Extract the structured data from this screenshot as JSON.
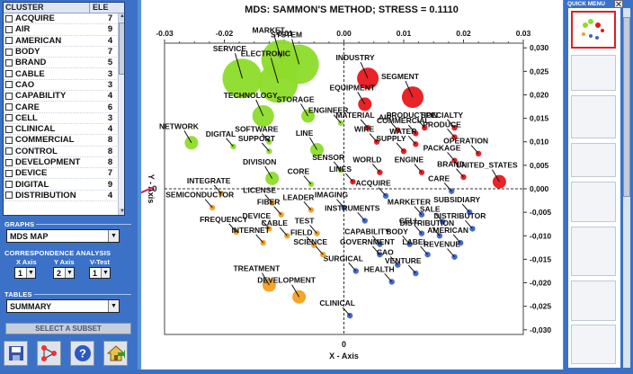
{
  "cluster_table": {
    "col_cluster": "CLUSTER",
    "col_ele": "ELE",
    "rows": [
      {
        "name": "ACQUIRE",
        "count": "7"
      },
      {
        "name": "AIR",
        "count": "9"
      },
      {
        "name": "AMERICAN",
        "count": "4"
      },
      {
        "name": "BODY",
        "count": "7"
      },
      {
        "name": "BRAND",
        "count": "5"
      },
      {
        "name": "CABLE",
        "count": "3"
      },
      {
        "name": "CAO",
        "count": "3"
      },
      {
        "name": "CAPABILITY",
        "count": "4"
      },
      {
        "name": "CARE",
        "count": "6"
      },
      {
        "name": "CELL",
        "count": "3"
      },
      {
        "name": "CLINICAL",
        "count": "4"
      },
      {
        "name": "COMMERCIAL",
        "count": "8"
      },
      {
        "name": "CONTROL",
        "count": "8"
      },
      {
        "name": "DEVELOPMENT",
        "count": "8"
      },
      {
        "name": "DEVICE",
        "count": "7"
      },
      {
        "name": "DIGITAL",
        "count": "9"
      },
      {
        "name": "DISTRIBUTION",
        "count": "4"
      }
    ]
  },
  "graphs": {
    "title": "GRAPHS",
    "selected": "MDS MAP"
  },
  "correspondence": {
    "title": "CORRESPONDENCE ANALYSIS",
    "x_label": "X Axis",
    "y_label": "Y Axis",
    "v_label": "V-Test",
    "x_value": "1",
    "y_value": "2",
    "v_value": "1"
  },
  "tables": {
    "title": "TABLES",
    "selected": "SUMMARY"
  },
  "subset_button": "SELECT A SUBSET",
  "quick_menu": {
    "title": "QUICK MENU"
  },
  "chart_data": {
    "type": "scatter",
    "title": "MDS: SAMMON'S METHOD; STRESS = 0.1110",
    "xlabel": "X - Axis",
    "ylabel": "Y - Axis",
    "xlim": [
      -0.03,
      0.03
    ],
    "ylim": [
      -0.031,
      0.031
    ],
    "xticks": [
      "-0.03",
      "-0.02",
      "-0.01",
      "0.00",
      "0.01",
      "0.02",
      "0.03"
    ],
    "yticks": [
      "0,030",
      "0,025",
      "0,020",
      "0,015",
      "0,010",
      "0,005",
      "0,000",
      "-0,005",
      "-0,010",
      "-0,015",
      "-0,020",
      "-0,025",
      "-0,030"
    ],
    "colors": {
      "green": "#8ddc2a",
      "red": "#e8171b",
      "orange": "#f3a020",
      "blue": "#3d63cf"
    },
    "points": [
      {
        "label": "MARKET",
        "x": -0.0105,
        "y": 0.0275,
        "size": 4,
        "color": "green"
      },
      {
        "label": "SYSTEM",
        "x": -0.0075,
        "y": 0.0265,
        "size": 4,
        "color": "green"
      },
      {
        "label": "SERVICE",
        "x": -0.017,
        "y": 0.0235,
        "size": 4,
        "color": "green"
      },
      {
        "label": "ELECTRONIC",
        "x": -0.011,
        "y": 0.0225,
        "size": 4,
        "color": "green"
      },
      {
        "label": "TECHNOLOGY",
        "x": -0.0135,
        "y": 0.0155,
        "size": 3,
        "color": "green"
      },
      {
        "label": "STORAGE",
        "x": -0.006,
        "y": 0.0155,
        "size": 2,
        "color": "green"
      },
      {
        "label": "ENGINEER",
        "x": -0.0005,
        "y": 0.014,
        "size": 1,
        "color": "green"
      },
      {
        "label": "NETWORK",
        "x": -0.0255,
        "y": 0.0098,
        "size": 2,
        "color": "green"
      },
      {
        "label": "SOFTWARE",
        "x": -0.0125,
        "y": 0.01,
        "size": 1,
        "color": "green"
      },
      {
        "label": "DIGITAL",
        "x": -0.0185,
        "y": 0.009,
        "size": 1,
        "color": "green"
      },
      {
        "label": "SUPPORT",
        "x": -0.0125,
        "y": 0.008,
        "size": 1,
        "color": "green"
      },
      {
        "label": "LINE",
        "x": -0.0045,
        "y": 0.0083,
        "size": 2,
        "color": "green"
      },
      {
        "label": "SENSOR",
        "x": -0.0005,
        "y": 0.004,
        "size": 1,
        "color": "green"
      },
      {
        "label": "DIVISION",
        "x": -0.012,
        "y": 0.0022,
        "size": 2,
        "color": "green"
      },
      {
        "label": "CORE",
        "x": -0.0055,
        "y": 0.001,
        "size": 1,
        "color": "green"
      },
      {
        "label": "INDUSTRY",
        "x": 0.004,
        "y": 0.0235,
        "size": 3,
        "color": "red"
      },
      {
        "label": "SEGMENT",
        "x": 0.0115,
        "y": 0.0195,
        "size": 3,
        "color": "red"
      },
      {
        "label": "EQUIPMENT",
        "x": 0.0035,
        "y": 0.018,
        "size": 2,
        "color": "red"
      },
      {
        "label": "MATERIAL",
        "x": 0.004,
        "y": 0.013,
        "size": 1,
        "color": "red"
      },
      {
        "label": "AIR",
        "x": 0.009,
        "y": 0.0125,
        "size": 1,
        "color": "red"
      },
      {
        "label": "COMMERCIAL",
        "x": 0.012,
        "y": 0.0118,
        "size": 1,
        "color": "red"
      },
      {
        "label": "PRODUCTION",
        "x": 0.0135,
        "y": 0.013,
        "size": 1,
        "color": "red"
      },
      {
        "label": "SPECIALTY",
        "x": 0.0185,
        "y": 0.013,
        "size": 1,
        "color": "red"
      },
      {
        "label": "WIRE",
        "x": 0.0055,
        "y": 0.01,
        "size": 1,
        "color": "red"
      },
      {
        "label": "WATER",
        "x": 0.012,
        "y": 0.0095,
        "size": 1,
        "color": "red"
      },
      {
        "label": "PRODUCE",
        "x": 0.0185,
        "y": 0.011,
        "size": 1,
        "color": "red"
      },
      {
        "label": "SUPPLY",
        "x": 0.01,
        "y": 0.008,
        "size": 1,
        "color": "red"
      },
      {
        "label": "OPERATION",
        "x": 0.0225,
        "y": 0.0075,
        "size": 1,
        "color": "red"
      },
      {
        "label": "PACKAGE",
        "x": 0.0185,
        "y": 0.006,
        "size": 1,
        "color": "red"
      },
      {
        "label": "WORLD",
        "x": 0.006,
        "y": 0.0035,
        "size": 1,
        "color": "red"
      },
      {
        "label": "ENGINE",
        "x": 0.013,
        "y": 0.0035,
        "size": 1,
        "color": "red"
      },
      {
        "label": "BRAND",
        "x": 0.02,
        "y": 0.0025,
        "size": 1,
        "color": "red"
      },
      {
        "label": "UNITED_STATES",
        "x": 0.026,
        "y": 0.0015,
        "size": 2,
        "color": "red"
      },
      {
        "label": "LINES",
        "x": 0.0015,
        "y": 0.0015,
        "size": 1,
        "color": "red"
      },
      {
        "label": "ACQUIRE",
        "x": 0.007,
        "y": -0.0015,
        "size": 1,
        "color": "blue"
      },
      {
        "label": "CARE",
        "x": 0.018,
        "y": -0.0005,
        "size": 1,
        "color": "blue"
      },
      {
        "label": "IMAGING",
        "x": 0.0,
        "y": -0.004,
        "size": 1,
        "color": "blue"
      },
      {
        "label": "MARKETER",
        "x": 0.013,
        "y": -0.0055,
        "size": 1,
        "color": "blue"
      },
      {
        "label": "SUBSIDIARY",
        "x": 0.021,
        "y": -0.005,
        "size": 1,
        "color": "blue"
      },
      {
        "label": "SALE",
        "x": 0.0165,
        "y": -0.007,
        "size": 1,
        "color": "blue"
      },
      {
        "label": "INSTRUMENTS",
        "x": 0.0035,
        "y": -0.0068,
        "size": 1,
        "color": "blue"
      },
      {
        "label": "CELL",
        "x": 0.013,
        "y": -0.0095,
        "size": 1,
        "color": "blue"
      },
      {
        "label": "DISTRIBUTOR",
        "x": 0.0215,
        "y": -0.0085,
        "size": 1,
        "color": "blue"
      },
      {
        "label": "DISTRIBUTION",
        "x": 0.016,
        "y": -0.01,
        "size": 1,
        "color": "blue"
      },
      {
        "label": "CAPABILITY",
        "x": 0.006,
        "y": -0.0118,
        "size": 1,
        "color": "blue"
      },
      {
        "label": "BODY",
        "x": 0.011,
        "y": -0.0118,
        "size": 1,
        "color": "blue"
      },
      {
        "label": "AMERICAN",
        "x": 0.0195,
        "y": -0.0115,
        "size": 1,
        "color": "blue"
      },
      {
        "label": "GOVERNMENT",
        "x": 0.006,
        "y": -0.014,
        "size": 1,
        "color": "blue"
      },
      {
        "label": "LABEL",
        "x": 0.014,
        "y": -0.014,
        "size": 1,
        "color": "blue"
      },
      {
        "label": "REVENUE",
        "x": 0.0185,
        "y": -0.0145,
        "size": 1,
        "color": "blue"
      },
      {
        "label": "CAO",
        "x": 0.009,
        "y": -0.0162,
        "size": 1,
        "color": "blue"
      },
      {
        "label": "SURGICAL",
        "x": 0.002,
        "y": -0.0175,
        "size": 1,
        "color": "blue"
      },
      {
        "label": "VENTURE",
        "x": 0.012,
        "y": -0.018,
        "size": 1,
        "color": "blue"
      },
      {
        "label": "HEALTH",
        "x": 0.008,
        "y": -0.0198,
        "size": 1,
        "color": "blue"
      },
      {
        "label": "CLINICAL",
        "x": 0.001,
        "y": -0.027,
        "size": 1,
        "color": "blue"
      },
      {
        "label": "INTEGRATE",
        "x": -0.0205,
        "y": -0.001,
        "size": 1,
        "color": "orange"
      },
      {
        "label": "SEMICONDUCTOR",
        "x": -0.022,
        "y": -0.004,
        "size": 1,
        "color": "orange"
      },
      {
        "label": "LICENSE",
        "x": -0.012,
        "y": -0.003,
        "size": 1,
        "color": "orange"
      },
      {
        "label": "FIBER",
        "x": -0.0105,
        "y": -0.0055,
        "size": 1,
        "color": "orange"
      },
      {
        "label": "LEADER",
        "x": -0.0055,
        "y": -0.0045,
        "size": 1,
        "color": "orange"
      },
      {
        "label": "DEVICE",
        "x": -0.0125,
        "y": -0.0085,
        "size": 1,
        "color": "orange"
      },
      {
        "label": "FREQUENCY",
        "x": -0.018,
        "y": -0.0092,
        "size": 1,
        "color": "orange"
      },
      {
        "label": "CABLE",
        "x": -0.0095,
        "y": -0.01,
        "size": 1,
        "color": "orange"
      },
      {
        "label": "TEST",
        "x": -0.0045,
        "y": -0.0095,
        "size": 1,
        "color": "orange"
      },
      {
        "label": "INTERNET",
        "x": -0.0135,
        "y": -0.0115,
        "size": 1,
        "color": "orange"
      },
      {
        "label": "FIELD",
        "x": -0.005,
        "y": -0.012,
        "size": 1,
        "color": "orange"
      },
      {
        "label": "SCIENCE",
        "x": -0.0035,
        "y": -0.014,
        "size": 1,
        "color": "orange"
      },
      {
        "label": "TREATMENT",
        "x": -0.0125,
        "y": -0.0205,
        "size": 2,
        "color": "orange"
      },
      {
        "label": "DEVELOPMENT",
        "x": -0.0075,
        "y": -0.023,
        "size": 2,
        "color": "orange"
      }
    ]
  }
}
